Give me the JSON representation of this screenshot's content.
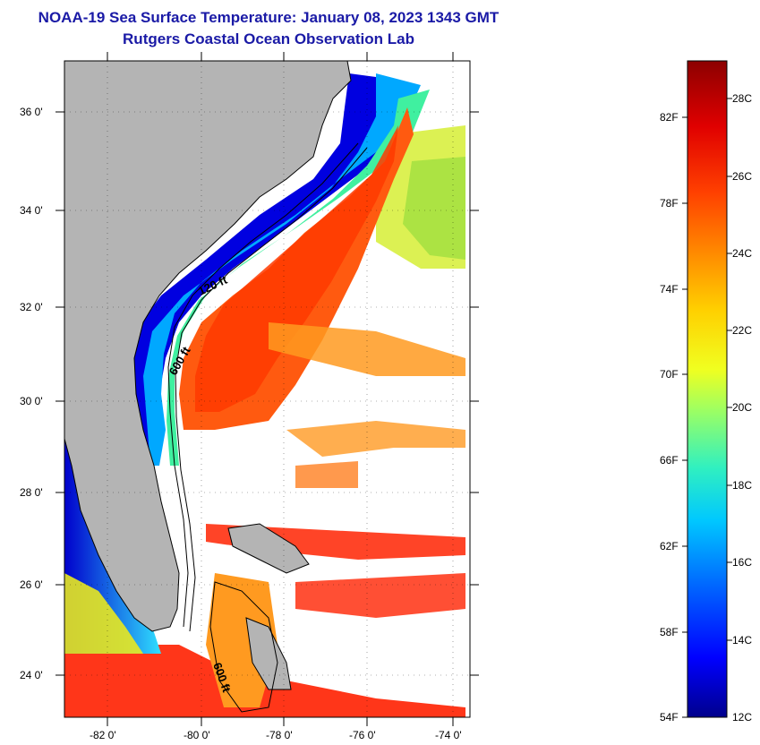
{
  "title_line1": "NOAA-19 Sea Surface Temperature:  January 08, 2023 1343 GMT",
  "title_line2": "Rutgers Coastal Ocean Observation Lab",
  "map": {
    "lat_labels": [
      "36 0'",
      "34 0'",
      "32 0'",
      "30 0'",
      "28 0'",
      "26 0'",
      "24 0'"
    ],
    "lon_labels": [
      "-82 0'",
      "-80 0'",
      "-78 0'",
      "-76 0'",
      "-74 0'"
    ],
    "contours": {
      "c120": "120 ft",
      "c600a": "600 ft",
      "c600b": "600 ft"
    },
    "colors": {
      "land": "#b4b4b4",
      "cloud": "#ffffff",
      "coastline": "#000000"
    }
  },
  "colorbar": {
    "fahrenheit": [
      "82F",
      "78F",
      "74F",
      "70F",
      "66F",
      "62F",
      "58F",
      "54F"
    ],
    "celsius": [
      "28C",
      "26C",
      "24C",
      "22C",
      "20C",
      "18C",
      "16C",
      "14C",
      "12C"
    ],
    "range_c": [
      12,
      29
    ],
    "gradient_colors": [
      "#00008c",
      "#0000ff",
      "#0066ff",
      "#00c8ff",
      "#30f0c0",
      "#a0ff60",
      "#f0ff20",
      "#ffd000",
      "#ff9000",
      "#ff4000",
      "#e00000",
      "#8c0000"
    ]
  }
}
